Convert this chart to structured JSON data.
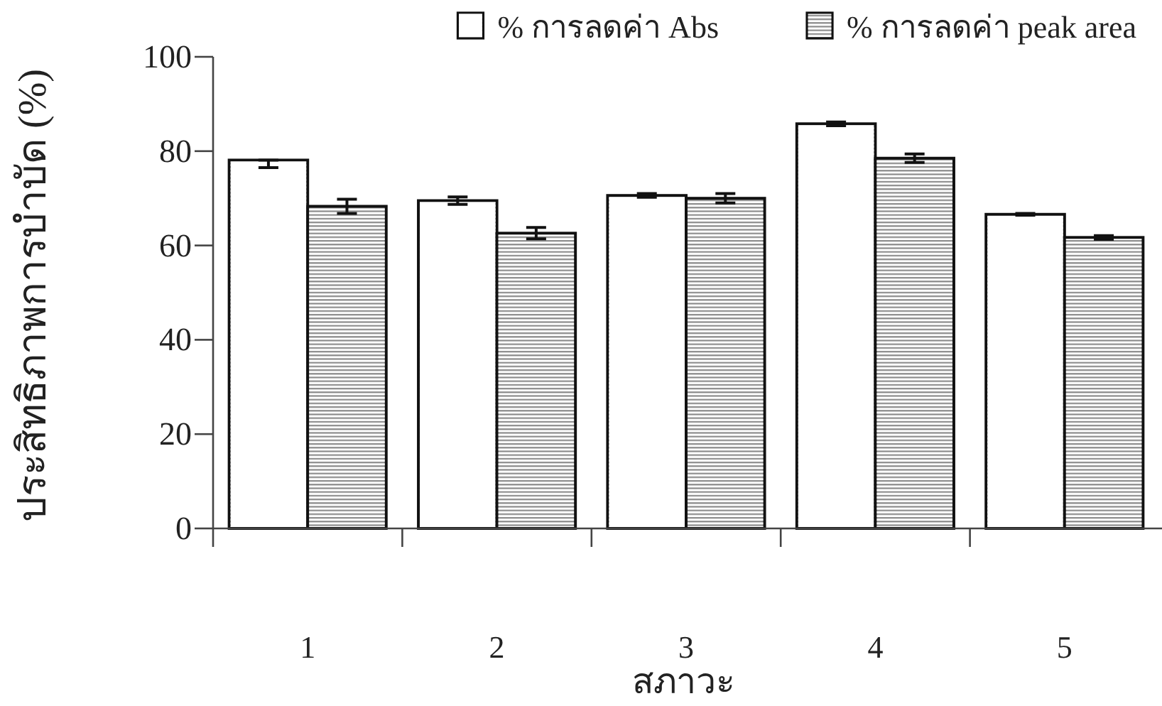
{
  "chart_data": {
    "type": "bar",
    "xlabel": "สภาวะ",
    "ylabel": "ประสิทธิภาพการบำบัด (%)",
    "categories": [
      "1",
      "2",
      "3",
      "4",
      "5"
    ],
    "series": [
      {
        "name": "% การลดค่า Abs",
        "color": "#ffffff",
        "values": [
          78.1,
          69.5,
          70.6,
          85.8,
          66.6
        ],
        "errors": [
          [
            76.5,
            78.1
          ],
          0.8,
          0.4,
          0.4,
          0.2
        ]
      },
      {
        "name": "% การลดค่า peak area",
        "color": "#8c8c8c",
        "values": [
          68.3,
          62.6,
          70.0,
          78.5,
          61.7
        ],
        "errors": [
          1.5,
          1.2,
          1.0,
          0.9,
          0.4
        ]
      }
    ],
    "ylim": [
      0,
      100
    ],
    "yticks": [
      0,
      20,
      40,
      60,
      80,
      100
    ],
    "legend": "top"
  }
}
